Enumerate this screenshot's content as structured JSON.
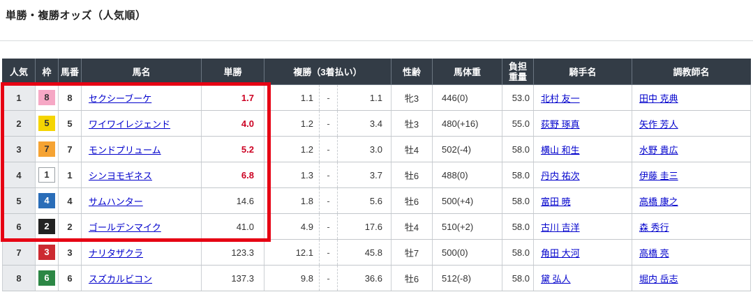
{
  "page": {
    "title": "単勝・複勝オッズ（人気順）"
  },
  "table": {
    "headers": {
      "rank": "人気",
      "frame": "枠",
      "number": "馬番",
      "horse": "馬名",
      "win": "単勝",
      "place": "複勝（3着払い）",
      "sex_age": "性齢",
      "weight": "馬体重",
      "load_line1": "負担",
      "load_line2": "重量",
      "jockey": "騎手名",
      "trainer": "調教師名"
    },
    "place_dash": "-",
    "rows": [
      {
        "rank": "1",
        "frame": "8",
        "frame_bg": "#f6a8c5",
        "frame_fg": "#333333",
        "number": "8",
        "horse": "セクシーブーケ",
        "win": "1.7",
        "win_color": "#cc0022",
        "place_min": "1.1",
        "place_max": "1.1",
        "sex_age": "牝3",
        "weight": "446(0)",
        "load": "53.0",
        "jockey": "北村 友一",
        "trainer": "田中 克典"
      },
      {
        "rank": "2",
        "frame": "5",
        "frame_bg": "#f5d502",
        "frame_fg": "#333333",
        "number": "5",
        "horse": "ワイワイレジェンド",
        "win": "4.0",
        "win_color": "#cc0022",
        "place_min": "1.2",
        "place_max": "3.4",
        "sex_age": "牡3",
        "weight": "480(+16)",
        "load": "55.0",
        "jockey": "荻野 琢真",
        "trainer": "矢作 芳人"
      },
      {
        "rank": "3",
        "frame": "7",
        "frame_bg": "#f5a333",
        "frame_fg": "#333333",
        "number": "7",
        "horse": "モンドプリューム",
        "win": "5.2",
        "win_color": "#cc0022",
        "place_min": "1.2",
        "place_max": "3.0",
        "sex_age": "牡4",
        "weight": "502(-4)",
        "load": "58.0",
        "jockey": "横山 和生",
        "trainer": "水野 貴広"
      },
      {
        "rank": "4",
        "frame": "1",
        "frame_bg": "#ffffff",
        "frame_fg": "#333333",
        "number": "1",
        "horse": "シンヨモギネス",
        "win": "6.8",
        "win_color": "#cc0022",
        "place_min": "1.3",
        "place_max": "3.7",
        "sex_age": "牡6",
        "weight": "488(0)",
        "load": "58.0",
        "jockey": "丹内 祐次",
        "trainer": "伊藤 圭三"
      },
      {
        "rank": "5",
        "frame": "4",
        "frame_bg": "#2a6db8",
        "frame_fg": "#ffffff",
        "number": "4",
        "horse": "サムハンター",
        "win": "14.6",
        "win_color": "#333333",
        "place_min": "1.8",
        "place_max": "5.6",
        "sex_age": "牡6",
        "weight": "500(+4)",
        "load": "58.0",
        "jockey": "富田 暁",
        "trainer": "高橋 康之"
      },
      {
        "rank": "6",
        "frame": "2",
        "frame_bg": "#222222",
        "frame_fg": "#ffffff",
        "number": "2",
        "horse": "ゴールデンマイク",
        "win": "41.0",
        "win_color": "#333333",
        "place_min": "4.9",
        "place_max": "17.6",
        "sex_age": "牡4",
        "weight": "510(+2)",
        "load": "58.0",
        "jockey": "古川 吉洋",
        "trainer": "森 秀行"
      },
      {
        "rank": "7",
        "frame": "3",
        "frame_bg": "#cc2a31",
        "frame_fg": "#ffffff",
        "number": "3",
        "horse": "ナリタザクラ",
        "win": "123.3",
        "win_color": "#333333",
        "place_min": "12.1",
        "place_max": "45.8",
        "sex_age": "牡7",
        "weight": "500(0)",
        "load": "58.0",
        "jockey": "角田 大河",
        "trainer": "高橋 亮"
      },
      {
        "rank": "8",
        "frame": "6",
        "frame_bg": "#2c8745",
        "frame_fg": "#ffffff",
        "number": "6",
        "horse": "スズカルビコン",
        "win": "137.3",
        "win_color": "#333333",
        "place_min": "9.8",
        "place_max": "36.6",
        "sex_age": "牡6",
        "weight": "512(-8)",
        "load": "58.0",
        "jockey": "黛 弘人",
        "trainer": "堀内 岳志"
      }
    ],
    "colors": {
      "accent_red": "#e60013",
      "hot_odds": "#cc0022",
      "header_bg": "#333c46",
      "link": "#0000cc"
    }
  }
}
